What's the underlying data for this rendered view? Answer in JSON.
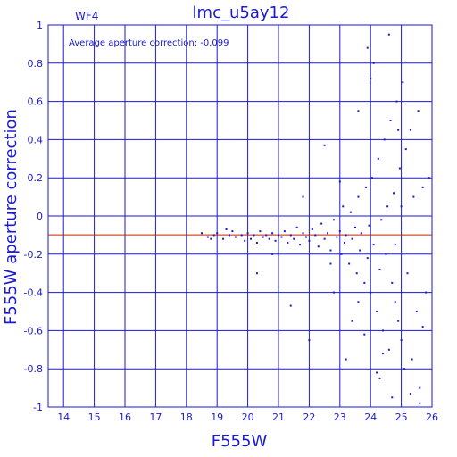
{
  "chart_data": {
    "type": "scatter",
    "title": "lmc_u5ay12",
    "subtitle": "WF4",
    "annotation": "Average aperture correction: -0.099",
    "xlabel": "F555W",
    "ylabel": "F555W aperture correction",
    "xlim": [
      13.5,
      26.0
    ],
    "ylim": [
      -1.0,
      1.0
    ],
    "x_ticks": [
      "14",
      "15",
      "16",
      "17",
      "18",
      "19",
      "20",
      "21",
      "22",
      "23",
      "24",
      "25",
      "26"
    ],
    "y_ticks": [
      "-1",
      "-0.8",
      "-0.6",
      "-0.4",
      "-0.2",
      "0",
      "0.2",
      "0.4",
      "0.6",
      "0.8",
      "1"
    ],
    "grid": true,
    "reference_line": {
      "y": -0.099,
      "color": "#cc2200"
    },
    "colors": {
      "axis": "#1a1ad0",
      "points": "#1a1ad0",
      "reference": "#cc2200"
    },
    "points": [
      [
        18.5,
        -0.09
      ],
      [
        18.7,
        -0.11
      ],
      [
        18.9,
        -0.1
      ],
      [
        19.0,
        -0.09
      ],
      [
        19.2,
        -0.12
      ],
      [
        19.4,
        -0.1
      ],
      [
        19.5,
        -0.08
      ],
      [
        19.6,
        -0.11
      ],
      [
        19.8,
        -0.1
      ],
      [
        19.9,
        -0.13
      ],
      [
        20.0,
        -0.09
      ],
      [
        20.1,
        -0.12
      ],
      [
        20.2,
        -0.1
      ],
      [
        20.3,
        -0.14
      ],
      [
        20.4,
        -0.08
      ],
      [
        20.5,
        -0.11
      ],
      [
        20.6,
        -0.1
      ],
      [
        20.7,
        -0.12
      ],
      [
        20.8,
        -0.09
      ],
      [
        20.9,
        -0.13
      ],
      [
        21.0,
        -0.1
      ],
      [
        21.1,
        -0.11
      ],
      [
        21.2,
        -0.08
      ],
      [
        21.3,
        -0.14
      ],
      [
        21.4,
        -0.1
      ],
      [
        21.5,
        -0.12
      ],
      [
        21.6,
        -0.06
      ],
      [
        21.7,
        -0.15
      ],
      [
        21.8,
        -0.09
      ],
      [
        21.9,
        -0.11
      ],
      [
        22.0,
        -0.13
      ],
      [
        22.1,
        -0.07
      ],
      [
        22.2,
        -0.1
      ],
      [
        22.3,
        -0.16
      ],
      [
        22.4,
        -0.04
      ],
      [
        22.5,
        -0.12
      ],
      [
        22.6,
        -0.09
      ],
      [
        22.7,
        -0.18
      ],
      [
        22.8,
        -0.02
      ],
      [
        22.9,
        -0.11
      ],
      [
        23.0,
        -0.08
      ],
      [
        23.05,
        -0.2
      ],
      [
        23.1,
        0.05
      ],
      [
        23.15,
        -0.14
      ],
      [
        23.2,
        -0.1
      ],
      [
        23.3,
        -0.25
      ],
      [
        23.35,
        0.02
      ],
      [
        23.4,
        -0.12
      ],
      [
        23.5,
        -0.06
      ],
      [
        23.55,
        -0.3
      ],
      [
        23.6,
        0.1
      ],
      [
        23.65,
        -0.18
      ],
      [
        23.7,
        -0.09
      ],
      [
        23.8,
        -0.35
      ],
      [
        23.85,
        0.15
      ],
      [
        23.9,
        -0.22
      ],
      [
        23.95,
        -0.05
      ],
      [
        24.0,
        -0.4
      ],
      [
        24.05,
        0.2
      ],
      [
        24.1,
        -0.15
      ],
      [
        24.2,
        -0.5
      ],
      [
        24.25,
        0.3
      ],
      [
        24.3,
        -0.28
      ],
      [
        24.35,
        -0.02
      ],
      [
        24.4,
        -0.6
      ],
      [
        24.45,
        0.4
      ],
      [
        24.5,
        -0.2
      ],
      [
        24.55,
        0.05
      ],
      [
        24.6,
        -0.7
      ],
      [
        24.65,
        0.5
      ],
      [
        24.7,
        -0.35
      ],
      [
        24.75,
        0.12
      ],
      [
        24.8,
        -0.45
      ],
      [
        24.85,
        0.6
      ],
      [
        24.9,
        -0.55
      ],
      [
        24.95,
        0.25
      ],
      [
        25.0,
        -0.65
      ],
      [
        25.05,
        0.7
      ],
      [
        25.1,
        -0.8
      ],
      [
        25.15,
        0.35
      ],
      [
        25.2,
        -0.3
      ],
      [
        25.3,
        0.45
      ],
      [
        25.35,
        -0.75
      ],
      [
        25.4,
        0.1
      ],
      [
        25.5,
        -0.5
      ],
      [
        25.55,
        0.55
      ],
      [
        25.6,
        -0.9
      ],
      [
        25.7,
        0.15
      ],
      [
        25.8,
        -0.4
      ],
      [
        25.9,
        0.2
      ],
      [
        23.9,
        0.88
      ],
      [
        24.6,
        0.95
      ],
      [
        24.1,
        0.8
      ],
      [
        24.3,
        -0.85
      ],
      [
        24.7,
        -0.95
      ],
      [
        25.3,
        -0.93
      ],
      [
        23.2,
        -0.75
      ],
      [
        22.0,
        -0.65
      ],
      [
        21.4,
        -0.47
      ],
      [
        20.3,
        -0.3
      ],
      [
        22.8,
        -0.4
      ],
      [
        23.6,
        0.55
      ],
      [
        24.9,
        0.45
      ],
      [
        25.7,
        -0.58
      ],
      [
        24.0,
        0.72
      ],
      [
        23.4,
        -0.55
      ],
      [
        22.5,
        0.37
      ],
      [
        24.2,
        -0.82
      ],
      [
        25.6,
        -0.98
      ],
      [
        21.8,
        0.1
      ],
      [
        20.8,
        -0.2
      ],
      [
        19.3,
        -0.07
      ],
      [
        18.8,
        -0.12
      ],
      [
        22.7,
        -0.25
      ],
      [
        23.0,
        0.18
      ],
      [
        23.8,
        -0.62
      ],
      [
        24.4,
        -0.72
      ],
      [
        25.0,
        0.05
      ],
      [
        24.8,
        -0.15
      ],
      [
        23.6,
        -0.45
      ]
    ]
  }
}
